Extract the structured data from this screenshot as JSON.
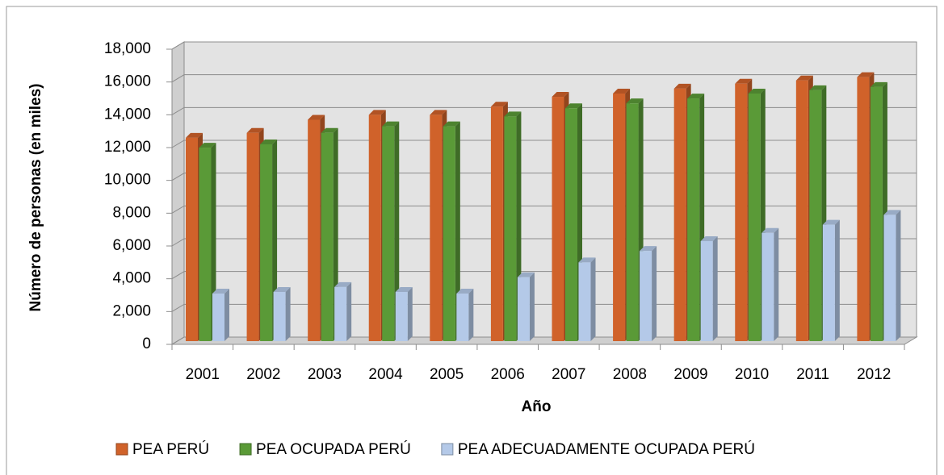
{
  "chart_data": {
    "type": "bar3d",
    "x_label": "Año",
    "y_label": "Número de personas (en miles)",
    "categories": [
      "2001",
      "2002",
      "2003",
      "2004",
      "2005",
      "2006",
      "2007",
      "2008",
      "2009",
      "2010",
      "2011",
      "2012"
    ],
    "series": [
      {
        "name": "PEA PERÚ",
        "color": "#d0622a",
        "values": [
          12400,
          12700,
          13500,
          13800,
          13800,
          14300,
          14900,
          15100,
          15400,
          15700,
          15900,
          16100
        ]
      },
      {
        "name": "PEA OCUPADA PERÚ",
        "color": "#5a9a37",
        "values": [
          11800,
          12000,
          12700,
          13100,
          13100,
          13700,
          14200,
          14500,
          14800,
          15100,
          15300,
          15500
        ]
      },
      {
        "name": "PEA ADECUADAMENTE OCUPADA PERÚ",
        "color": "#b4c9e8",
        "values": [
          2900,
          3000,
          3300,
          3000,
          2900,
          3900,
          4800,
          5500,
          6100,
          6600,
          7100,
          7700
        ]
      }
    ],
    "ylim": [
      0,
      18000
    ],
    "yticks": [
      0,
      {
        "value": 2000,
        "label": "2,000"
      },
      {
        "value": 4000,
        "label": "4,000"
      },
      {
        "value": 6000,
        "label": "6,000"
      },
      {
        "value": 8000,
        "label": "8,000"
      },
      {
        "value": 10000,
        "label": "10,000"
      },
      {
        "value": 12000,
        "label": "12,000"
      },
      {
        "value": 14000,
        "label": "14,000"
      },
      {
        "value": 16000,
        "label": "16,000"
      },
      {
        "value": 18000,
        "label": "18,000"
      }
    ],
    "grid": true
  }
}
